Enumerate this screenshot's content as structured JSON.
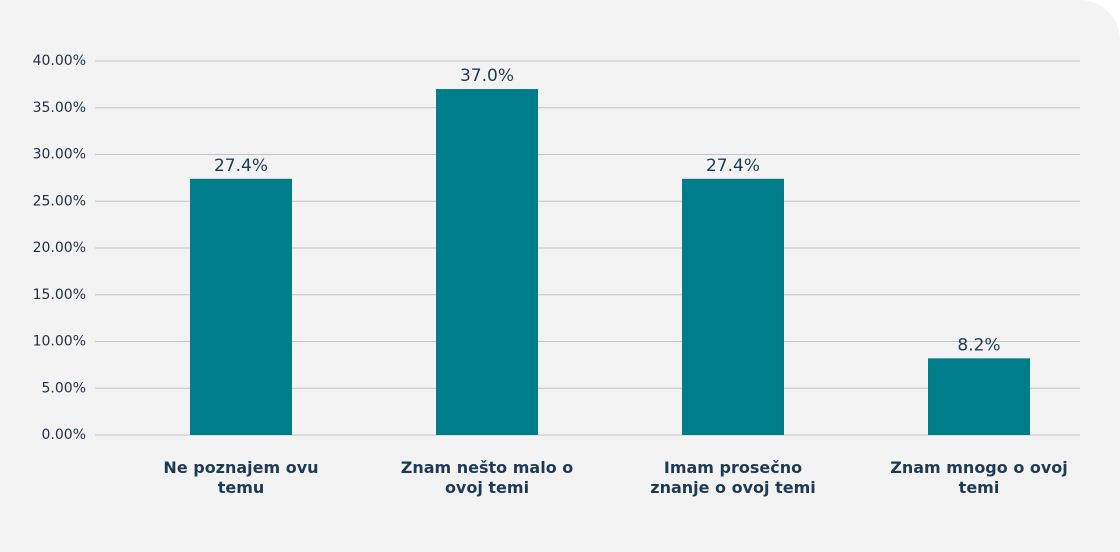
{
  "chart_data": {
    "type": "bar",
    "categories": [
      "Ne poznajem ovu temu",
      "Znam nešto malo o ovoj temi",
      "Imam prosečno znanje o ovoj temi",
      "Znam mnogo o ovoj temi"
    ],
    "values": [
      27.4,
      37.0,
      27.4,
      8.2
    ],
    "value_labels": [
      "27.4%",
      "37.0%",
      "27.4%",
      "8.2%"
    ],
    "color": "#007d8a",
    "ylim": [
      0,
      40
    ],
    "yticks": [
      {
        "value": 0,
        "label": "0.00%"
      },
      {
        "value": 5,
        "label": "5.00%"
      },
      {
        "value": 10,
        "label": "10.00%"
      },
      {
        "value": 15,
        "label": "15.00%"
      },
      {
        "value": 20,
        "label": "20.00%"
      },
      {
        "value": 25,
        "label": "25.00%"
      },
      {
        "value": 30,
        "label": "30.00%"
      },
      {
        "value": 35,
        "label": "35.00%"
      },
      {
        "value": 40,
        "label": "40.00%"
      }
    ],
    "grid": true
  }
}
